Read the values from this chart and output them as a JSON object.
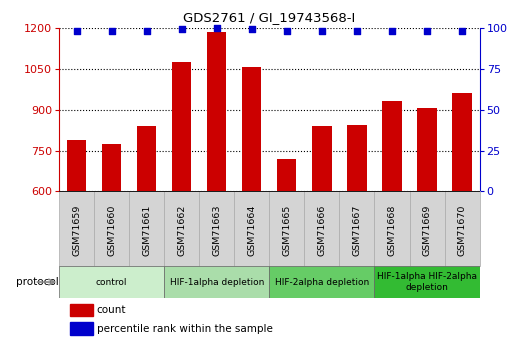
{
  "title": "GDS2761 / GI_19743568-I",
  "samples": [
    "GSM71659",
    "GSM71660",
    "GSM71661",
    "GSM71662",
    "GSM71663",
    "GSM71664",
    "GSM71665",
    "GSM71666",
    "GSM71667",
    "GSM71668",
    "GSM71669",
    "GSM71670"
  ],
  "counts": [
    790,
    775,
    840,
    1075,
    1185,
    1055,
    720,
    840,
    845,
    930,
    905,
    960
  ],
  "percentile_ranks": [
    98,
    98,
    98,
    99,
    100,
    99,
    98,
    98,
    98,
    98,
    98,
    98
  ],
  "ylim_left": [
    600,
    1200
  ],
  "ylim_right": [
    0,
    100
  ],
  "yticks_left": [
    600,
    750,
    900,
    1050,
    1200
  ],
  "yticks_right": [
    0,
    25,
    50,
    75,
    100
  ],
  "bar_color": "#cc0000",
  "dot_color": "#0000cc",
  "protocol_groups": [
    {
      "label": "control",
      "start": 0,
      "end": 3,
      "color": "#cceecc"
    },
    {
      "label": "HIF-1alpha depletion",
      "start": 3,
      "end": 6,
      "color": "#aaddaa"
    },
    {
      "label": "HIF-2alpha depletion",
      "start": 6,
      "end": 9,
      "color": "#66cc66"
    },
    {
      "label": "HIF-1alpha HIF-2alpha\ndepletion",
      "start": 9,
      "end": 12,
      "color": "#33bb33"
    }
  ],
  "tick_color_left": "#cc0000",
  "tick_color_right": "#0000cc",
  "sample_bg_color": "#d4d4d4",
  "bg_color": "#ffffff",
  "protocol_arrow_color": "#888888",
  "legend_count_label": "count",
  "legend_pct_label": "percentile rank within the sample",
  "protocol_label": "protocol"
}
